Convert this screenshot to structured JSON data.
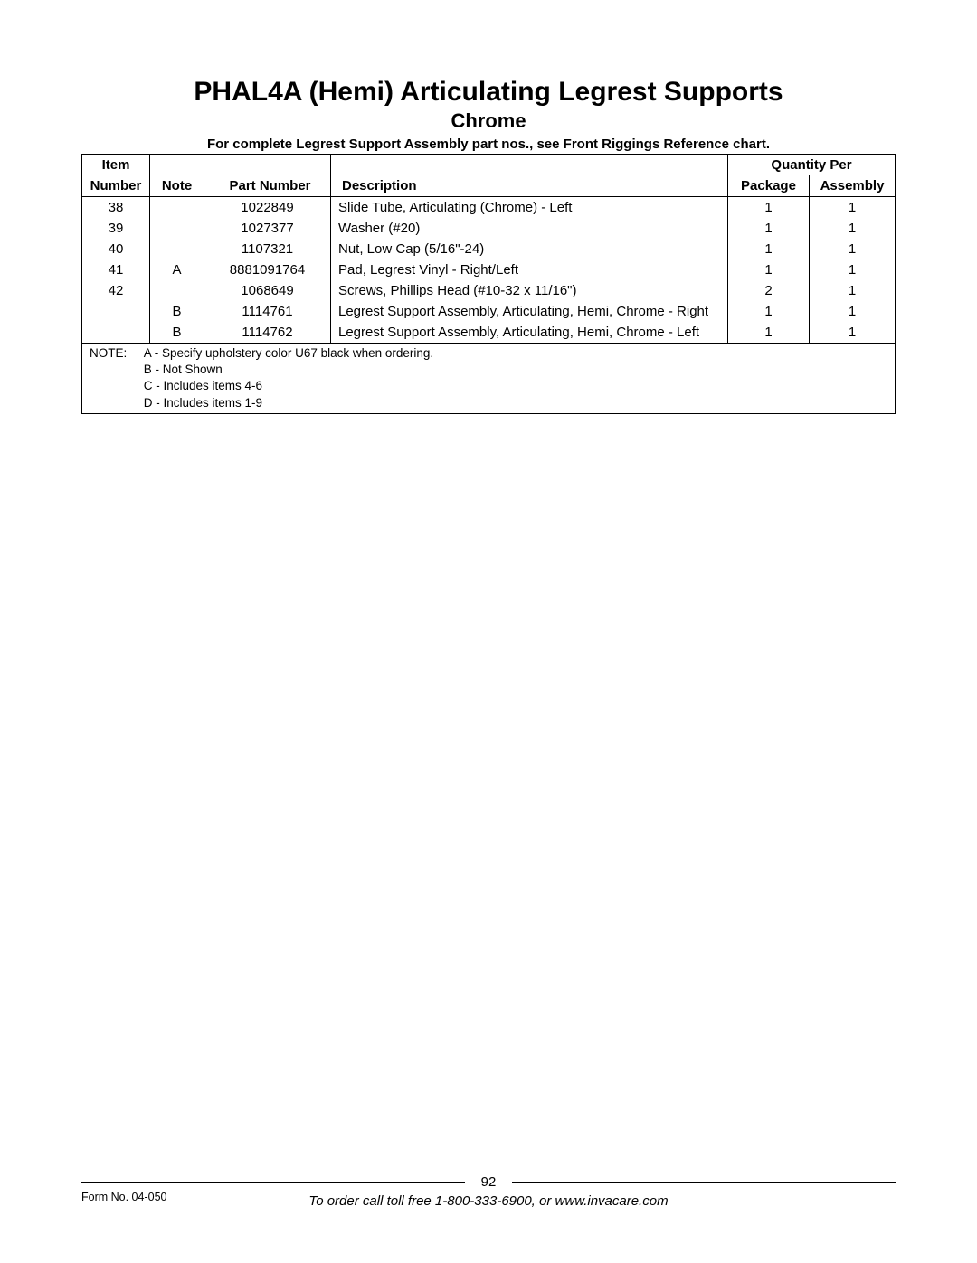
{
  "title": "PHAL4A (Hemi) Articulating Legrest Supports",
  "subtitle": "Chrome",
  "header_note": "For complete Legrest Support Assembly part nos., see Front Riggings Reference chart.",
  "table": {
    "headers": {
      "item_line1": "Item",
      "item_line2": "Number",
      "note": "Note",
      "part_number": "Part Number",
      "description": "Description",
      "qty_per": "Quantity Per",
      "package": "Package",
      "assembly": "Assembly"
    },
    "rows": [
      {
        "item": "38",
        "note": "",
        "part": "1022849",
        "desc": "Slide Tube, Articulating (Chrome) - Left",
        "pkg": "1",
        "asm": "1"
      },
      {
        "item": "39",
        "note": "",
        "part": "1027377",
        "desc": "Washer (#20)",
        "pkg": "1",
        "asm": "1"
      },
      {
        "item": "40",
        "note": "",
        "part": "1107321",
        "desc": "Nut, Low Cap (5/16\"-24)",
        "pkg": "1",
        "asm": "1"
      },
      {
        "item": "41",
        "note": "A",
        "part": "8881091764",
        "desc": "Pad, Legrest Vinyl - Right/Left",
        "pkg": "1",
        "asm": "1"
      },
      {
        "item": "42",
        "note": "",
        "part": "1068649",
        "desc": "Screws, Phillips Head  (#10-32 x 11/16\")",
        "pkg": "2",
        "asm": "1"
      },
      {
        "item": "",
        "note": "B",
        "part": "1114761",
        "desc": "Legrest Support Assembly, Articulating, Hemi, Chrome - Right",
        "pkg": "1",
        "asm": "1"
      },
      {
        "item": "",
        "note": "B",
        "part": "1114762",
        "desc": "Legrest Support Assembly, Articulating, Hemi, Chrome - Left",
        "pkg": "1",
        "asm": "1"
      }
    ],
    "note_label": "NOTE:",
    "notes": [
      "A - Specify upholstery color U67 black when ordering.",
      "B - Not Shown",
      "C - Includes items 4-6",
      "D - Includes items 1-9"
    ]
  },
  "footer": {
    "page_number": "92",
    "form_no": "Form No. 04-050",
    "order_line": "To order call toll free 1-800-333-6900, or www.invacare.com"
  }
}
